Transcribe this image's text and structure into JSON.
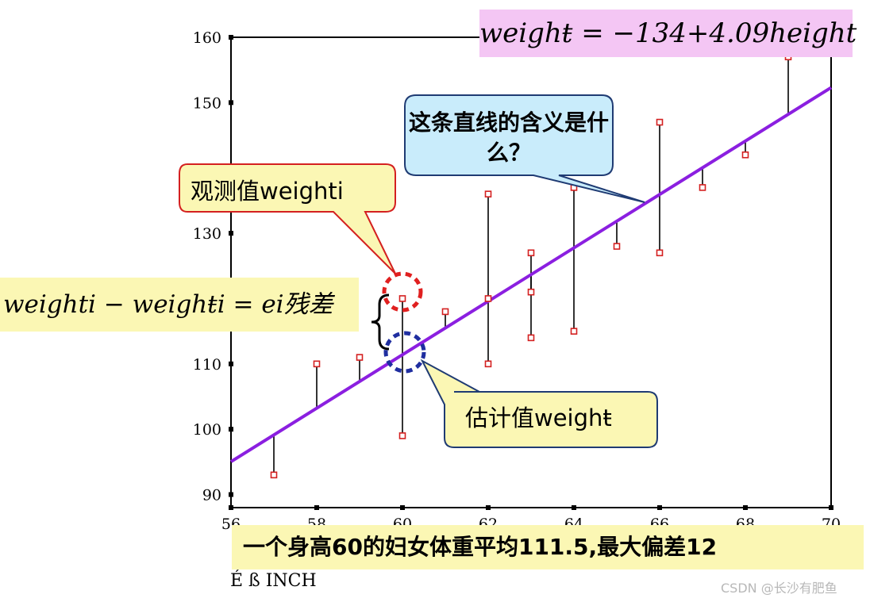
{
  "chart_data": {
    "type": "scatter",
    "xlim": [
      56,
      70
    ],
    "ylim": [
      88,
      160
    ],
    "xticks": [
      56,
      58,
      60,
      62,
      64,
      66,
      68,
      70
    ],
    "yticks": [
      90,
      100,
      110,
      130,
      150,
      160
    ],
    "regression": {
      "intercept": -134,
      "slope": 4.09
    },
    "points": [
      {
        "x": 57,
        "y": 93
      },
      {
        "x": 58,
        "y": 110
      },
      {
        "x": 59,
        "y": 111
      },
      {
        "x": 60,
        "y": 120
      },
      {
        "x": 60,
        "y": 99
      },
      {
        "x": 61,
        "y": 118
      },
      {
        "x": 62,
        "y": 136
      },
      {
        "x": 62,
        "y": 120
      },
      {
        "x": 62,
        "y": 110
      },
      {
        "x": 63,
        "y": 127
      },
      {
        "x": 63,
        "y": 121
      },
      {
        "x": 63,
        "y": 114
      },
      {
        "x": 64,
        "y": 137
      },
      {
        "x": 64,
        "y": 115
      },
      {
        "x": 65,
        "y": 128
      },
      {
        "x": 66,
        "y": 147
      },
      {
        "x": 66,
        "y": 127
      },
      {
        "x": 67,
        "y": 137
      },
      {
        "x": 68,
        "y": 142
      },
      {
        "x": 69,
        "y": 157
      }
    ],
    "grid": false,
    "colors": {
      "points": "#d42020",
      "line": "#8b1fe0",
      "residual": "#000000"
    }
  },
  "equation_top": "weighŧ = −134+4.09height",
  "equation_residual": "weighti − weighŧi = ei残差",
  "callouts": {
    "question": "这条直线的含义是什么？",
    "observed": "观测值weighti",
    "estimated": "估计值weighŧ"
  },
  "bottom_banner": "一个身高60的妇女体重平均111.5,最大偏差12",
  "unit_label": "É  ß  INCH",
  "watermark": "CSDN @长沙有肥鱼",
  "colors": {
    "equation_bg": "#f4c6f4",
    "banner_bg": "#fbf7b4",
    "question_bg": "#c9ecfb",
    "question_border": "#1f3b73",
    "observed_border": "#d42020",
    "estimated_border": "#1f3b73",
    "callout_bg": "#fbf7b4",
    "obs_circle": "#e02020",
    "est_circle": "#1f2ea0"
  }
}
